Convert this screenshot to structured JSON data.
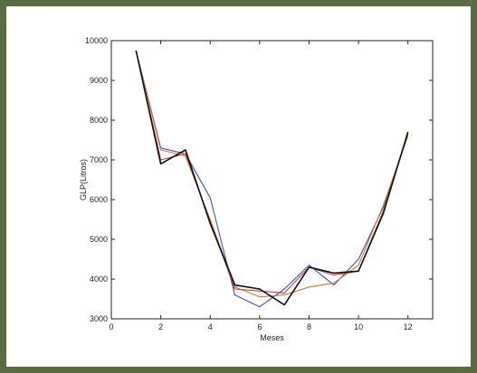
{
  "chart_data": {
    "type": "line",
    "xlabel": "Meses",
    "ylabel": "GLP(Litros)",
    "xlim": [
      0,
      13
    ],
    "ylim": [
      3000,
      10000
    ],
    "xticks": [
      0,
      2,
      4,
      6,
      8,
      10,
      12
    ],
    "yticks": [
      3000,
      4000,
      5000,
      6000,
      7000,
      8000,
      9000,
      10000
    ],
    "grid": false,
    "x": [
      1,
      2,
      3,
      4,
      5,
      6,
      7,
      8,
      9,
      10,
      11,
      12
    ],
    "series": [
      {
        "color": "#3b4fc4",
        "values": [
          9750,
          7300,
          7150,
          6050,
          3600,
          3300,
          3750,
          4350,
          3850,
          4500,
          5800,
          7650
        ]
      },
      {
        "color": "#c87a2e",
        "values": [
          9750,
          7250,
          7100,
          5500,
          3800,
          3550,
          3600,
          3800,
          3900,
          4350,
          5850,
          7600
        ]
      },
      {
        "color": "#c83c3c",
        "values": [
          9750,
          7000,
          7150,
          5450,
          3750,
          3700,
          3650,
          4300,
          4100,
          4200,
          5700,
          7650
        ]
      },
      {
        "color": "#111111",
        "values": [
          9750,
          6900,
          7250,
          5400,
          3850,
          3750,
          3350,
          4300,
          4150,
          4200,
          5650,
          7700
        ]
      }
    ]
  }
}
